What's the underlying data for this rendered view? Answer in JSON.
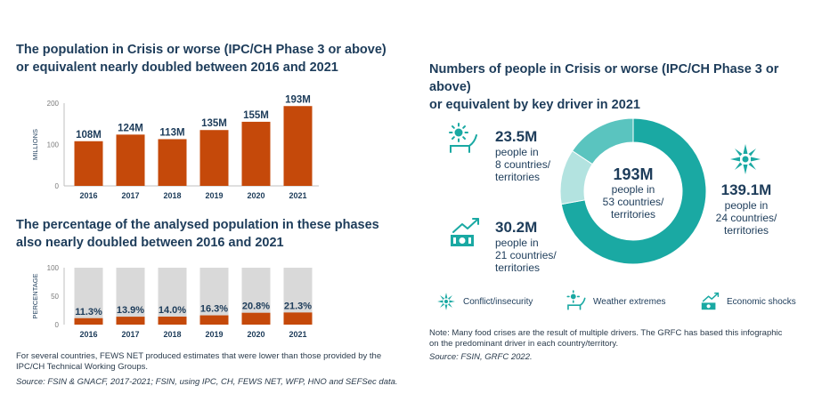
{
  "left": {
    "title1_line1": "The population in Crisis or worse (IPC/CH Phase 3 or above)",
    "title1_line2": "or equivalent nearly doubled between 2016 and 2021",
    "title2_line1": "The percentage of the analysed population in these phases",
    "title2_line2": "also nearly doubled between 2016 and 2021",
    "note_line1": "For several countries, FEWS NET produced estimates that were lower than those provided by the",
    "note_line2": "IPC/CH Technical Working Groups.",
    "source": "Source: FSIN & GNACF, 2017-2021; FSIN, using IPC, CH, FEWS NET, WFP, HNO and SEFSec data."
  },
  "right": {
    "title_line1": "Numbers of people in Crisis or worse (IPC/CH Phase 3 or above)",
    "title_line2": "or equivalent by key driver in 2021",
    "weather": {
      "value": "23.5M",
      "l1": "people in",
      "l2": "8 countries/",
      "l3": "territories"
    },
    "economic": {
      "value": "30.2M",
      "l1": "people in",
      "l2": "21 countries/",
      "l3": "territories"
    },
    "conflict": {
      "value": "139.1M",
      "l1": "people in",
      "l2": "24 countries/",
      "l3": "territories"
    },
    "center": {
      "value": "193M",
      "l1": "people in",
      "l2": "53 countries/",
      "l3": "territories"
    },
    "legend": {
      "conflict": "Conflict/insecurity",
      "weather": "Weather extremes",
      "economic": "Economic shocks"
    },
    "note_line1": "Note: Many food crises are the result of multiple drivers. The GRFC has based this infographic",
    "note_line2": "on the predominant driver in each country/territory.",
    "source": "Source: FSIN, GRFC 2022."
  },
  "colors": {
    "navy": "#1d3c5a",
    "bar": "#c5490a",
    "bar_bg": "#d9d9d9",
    "teal_dark": "#1aa9a3",
    "teal_mid": "#5ac4bf",
    "teal_light": "#b3e3e0"
  },
  "chart_data": [
    {
      "type": "bar",
      "categories": [
        "2016",
        "2017",
        "2018",
        "2019",
        "2020",
        "2021"
      ],
      "values": [
        108,
        124,
        113,
        135,
        155,
        193
      ],
      "labels": [
        "108M",
        "124M",
        "113M",
        "135M",
        "155M",
        "193M"
      ],
      "ylabel": "MILLIONS",
      "yticks": [
        "0",
        "100",
        "200"
      ],
      "ylim": [
        0,
        200
      ]
    },
    {
      "type": "bar",
      "categories": [
        "2016",
        "2017",
        "2018",
        "2019",
        "2020",
        "2021"
      ],
      "values": [
        11.3,
        13.9,
        14.0,
        16.3,
        20.8,
        21.3
      ],
      "labels": [
        "11.3%",
        "13.9%",
        "14.0%",
        "16.3%",
        "20.8%",
        "21.3%"
      ],
      "ylabel": "PERCENTAGE",
      "yticks": [
        "0",
        "50",
        "100"
      ],
      "ylim": [
        0,
        100
      ]
    },
    {
      "type": "pie",
      "categories": [
        "Conflict/insecurity",
        "Weather extremes",
        "Economic shocks"
      ],
      "values": [
        139.1,
        23.5,
        30.2
      ],
      "total": 193
    }
  ]
}
